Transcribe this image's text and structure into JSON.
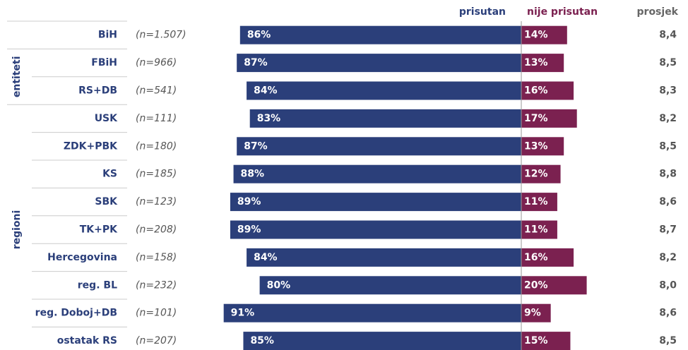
{
  "chart_data": {
    "type": "diverging_bar",
    "categories": [
      "BiH",
      "FBiH",
      "RS+DB",
      "USK",
      "ZDK+PBK",
      "KS",
      "SBK",
      "TK+PK",
      "Hercegovina",
      "reg. BL",
      "reg. Doboj+DB",
      "ostatak RS"
    ],
    "category_groups": [
      null,
      "entiteti",
      "entiteti",
      "regioni",
      "regioni",
      "regioni",
      "regioni",
      "regioni",
      "regioni",
      "regioni",
      "regioni",
      "regioni"
    ],
    "sample_sizes": [
      "(n=1.507)",
      "(n=966)",
      "(n=541)",
      "(n=111)",
      "(n=180)",
      "(n=185)",
      "(n=123)",
      "(n=208)",
      "(n=158)",
      "(n=232)",
      "(n=101)",
      "(n=207)"
    ],
    "series": [
      {
        "name": "prisutan",
        "color": "#2b3f7a",
        "values": [
          86,
          87,
          84,
          83,
          87,
          88,
          89,
          89,
          84,
          80,
          91,
          85
        ],
        "value_labels": [
          "86%",
          "87%",
          "84%",
          "83%",
          "87%",
          "88%",
          "89%",
          "89%",
          "84%",
          "80%",
          "91%",
          "85%"
        ]
      },
      {
        "name": "nije prisutan",
        "color": "#7b2150",
        "values": [
          14,
          13,
          16,
          17,
          13,
          12,
          11,
          11,
          16,
          20,
          9,
          15
        ],
        "value_labels": [
          "14%",
          "13%",
          "16%",
          "17%",
          "13%",
          "12%",
          "11%",
          "11%",
          "16%",
          "20%",
          "9%",
          "15%"
        ]
      }
    ],
    "averages": {
      "name": "prosjek",
      "values": [
        8.4,
        8.5,
        8.3,
        8.2,
        8.5,
        8.8,
        8.6,
        8.7,
        8.2,
        8.0,
        8.6,
        8.5
      ],
      "value_labels": [
        "8,4",
        "8,5",
        "8,3",
        "8,2",
        "8,5",
        "8,8",
        "8,6",
        "8,7",
        "8,2",
        "8,0",
        "8,6",
        "8,5"
      ]
    }
  }
}
